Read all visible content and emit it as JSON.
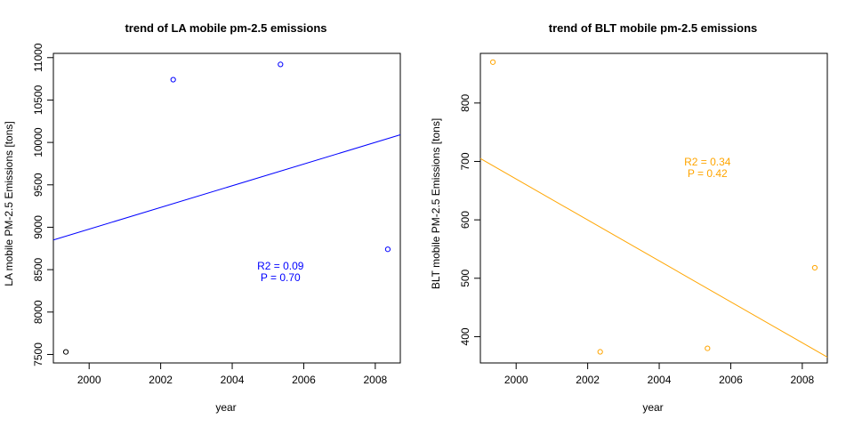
{
  "chart_data": [
    {
      "type": "scatter",
      "title": "trend of LA mobile pm-2.5 emissions",
      "xlabel": "year",
      "ylabel": "LA mobile PM-2.5 Emissions [tons]",
      "xlim": [
        1999,
        2008.7
      ],
      "ylim": [
        7400,
        11050
      ],
      "xticks": [
        2000,
        2002,
        2004,
        2006,
        2008
      ],
      "yticks": [
        7500,
        8000,
        8500,
        9000,
        9500,
        10000,
        10500,
        11000
      ],
      "grid": false,
      "points": [
        {
          "x": 1999.35,
          "y": 7530,
          "color": "#000000"
        },
        {
          "x": 2002.35,
          "y": 10740,
          "color": "#0000ff"
        },
        {
          "x": 2005.35,
          "y": 10920,
          "color": "#0000ff"
        },
        {
          "x": 2008.35,
          "y": 8740,
          "color": "#0000ff"
        }
      ],
      "trend_line": {
        "x": [
          1999,
          2008.7
        ],
        "y": [
          8850,
          10090
        ],
        "color": "#0000ff"
      },
      "annotation": {
        "lines": [
          "R2 = 0.09",
          "P = 0.70"
        ],
        "x": 2005.35,
        "y": 8500,
        "color": "#0000ff"
      }
    },
    {
      "type": "scatter",
      "title": "trend of BLT mobile pm-2.5 emissions",
      "xlabel": "year",
      "ylabel": "BLT mobile PM-2.5 Emissions [tons]",
      "xlim": [
        1999,
        2008.7
      ],
      "ylim": [
        355,
        885
      ],
      "xticks": [
        2000,
        2002,
        2004,
        2006,
        2008
      ],
      "yticks": [
        400,
        500,
        600,
        700,
        800
      ],
      "grid": false,
      "points": [
        {
          "x": 1999.35,
          "y": 870,
          "color": "#ffa500"
        },
        {
          "x": 2002.35,
          "y": 374,
          "color": "#ffa500"
        },
        {
          "x": 2005.35,
          "y": 380,
          "color": "#ffa500"
        },
        {
          "x": 2008.35,
          "y": 518,
          "color": "#ffa500"
        }
      ],
      "trend_line": {
        "x": [
          1999,
          2008.7
        ],
        "y": [
          705,
          365
        ],
        "color": "#ffa500"
      },
      "annotation": {
        "lines": [
          "R2 = 0.34",
          "P = 0.42"
        ],
        "x": 2005.35,
        "y": 693,
        "color": "#ffa500"
      }
    }
  ]
}
